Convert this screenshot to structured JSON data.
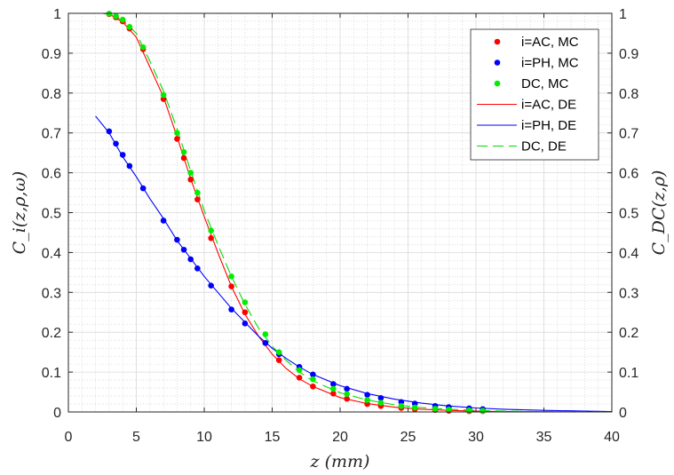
{
  "chart_data": {
    "type": "scatter",
    "xlabel": "z (mm)",
    "ylabel": "C_i(z,ρ,ω)",
    "ylabel_right": "C_DC(z,ρ)",
    "xlim": [
      0,
      40
    ],
    "ylim": [
      0,
      1
    ],
    "xticks": [
      "0",
      "5",
      "10",
      "15",
      "20",
      "25",
      "30",
      "35",
      "40"
    ],
    "yticks": [
      "0",
      "0.1",
      "0.2",
      "0.3",
      "0.4",
      "0.5",
      "0.6",
      "0.7",
      "0.8",
      "0.9",
      "1"
    ],
    "grid": true,
    "minor_grid": true,
    "legend_position": "top-right",
    "series": [
      {
        "name": "i=AC, MC",
        "kind": "markers",
        "color": "#ff0000",
        "x": [
          3,
          3.5,
          4,
          4.5,
          5.5,
          7,
          8,
          8.5,
          9,
          9.5,
          10.5,
          12,
          13,
          14.5,
          15.5,
          17,
          18,
          19.5,
          20.5,
          22,
          23,
          24.5,
          25.5,
          27,
          28,
          29.5,
          30.5
        ],
        "y": [
          0.998,
          0.99,
          0.98,
          0.962,
          0.91,
          0.785,
          0.685,
          0.637,
          0.583,
          0.533,
          0.436,
          0.315,
          0.25,
          0.173,
          0.13,
          0.086,
          0.064,
          0.046,
          0.033,
          0.02,
          0.015,
          0.01,
          0.007,
          0.005,
          0.003,
          0.002,
          0.002
        ]
      },
      {
        "name": "i=PH, MC",
        "kind": "markers",
        "color": "#0000ff",
        "x": [
          3,
          3.5,
          4,
          4.5,
          5.5,
          7,
          8,
          8.5,
          9,
          9.5,
          10.5,
          12,
          13,
          14.5,
          15.5,
          17,
          18,
          19.5,
          20.5,
          22,
          23,
          24.5,
          25.5,
          27,
          28,
          29.5,
          30.5
        ],
        "y": [
          0.704,
          0.673,
          0.645,
          0.617,
          0.561,
          0.48,
          0.432,
          0.407,
          0.383,
          0.36,
          0.317,
          0.257,
          0.222,
          0.173,
          0.145,
          0.113,
          0.094,
          0.07,
          0.058,
          0.043,
          0.035,
          0.025,
          0.021,
          0.015,
          0.012,
          0.009,
          0.007
        ]
      },
      {
        "name": "DC, MC",
        "kind": "markers",
        "color": "#00ee00",
        "x": [
          3,
          3.5,
          4,
          4.5,
          5.5,
          7,
          8,
          8.5,
          9,
          9.5,
          10.5,
          12,
          13,
          14.5,
          15.5,
          17,
          18,
          19.5,
          20.5,
          22,
          23,
          24.5,
          25.5,
          27,
          28,
          29.5,
          30.5
        ],
        "y": [
          0.999,
          0.993,
          0.984,
          0.966,
          0.915,
          0.795,
          0.7,
          0.652,
          0.6,
          0.55,
          0.455,
          0.34,
          0.275,
          0.195,
          0.15,
          0.105,
          0.082,
          0.058,
          0.045,
          0.03,
          0.023,
          0.015,
          0.011,
          0.008,
          0.006,
          0.004,
          0.003
        ]
      },
      {
        "name": "i=AC, DE",
        "kind": "line",
        "color": "#ff0000",
        "dash": "",
        "x": [
          2.5,
          3,
          4,
          5,
          6,
          7,
          8,
          9,
          10,
          11,
          12,
          13,
          14,
          15,
          16,
          17,
          18,
          20,
          22,
          24,
          26,
          28,
          30,
          32,
          35,
          40
        ],
        "y": [
          1.0,
          0.998,
          0.978,
          0.94,
          0.865,
          0.79,
          0.69,
          0.585,
          0.49,
          0.4,
          0.315,
          0.245,
          0.19,
          0.145,
          0.11,
          0.083,
          0.064,
          0.036,
          0.021,
          0.012,
          0.007,
          0.004,
          0.002,
          0.001,
          0.0005,
          0.0
        ]
      },
      {
        "name": "i=PH, DE",
        "kind": "line",
        "color": "#0000ff",
        "dash": "",
        "x": [
          2,
          3,
          4,
          5,
          6,
          7,
          8,
          9,
          10,
          11,
          12,
          13,
          14,
          15,
          16,
          17,
          18,
          20,
          22,
          24,
          26,
          28,
          30,
          32,
          35,
          40
        ],
        "y": [
          0.742,
          0.7,
          0.64,
          0.59,
          0.535,
          0.485,
          0.43,
          0.385,
          0.34,
          0.3,
          0.26,
          0.225,
          0.19,
          0.16,
          0.135,
          0.113,
          0.094,
          0.066,
          0.046,
          0.032,
          0.022,
          0.015,
          0.01,
          0.007,
          0.004,
          0.001
        ]
      },
      {
        "name": "DC, DE",
        "kind": "line",
        "color": "#00dd00",
        "dash": "12,6",
        "x": [
          2.5,
          3,
          4,
          5,
          6,
          7,
          8,
          9,
          10,
          11,
          12,
          13,
          14,
          15,
          16,
          17,
          18,
          20,
          22,
          24,
          26,
          28,
          30,
          32,
          35,
          40
        ],
        "y": [
          1.0,
          0.999,
          0.982,
          0.95,
          0.88,
          0.805,
          0.71,
          0.605,
          0.505,
          0.42,
          0.34,
          0.27,
          0.21,
          0.165,
          0.13,
          0.1,
          0.078,
          0.048,
          0.03,
          0.018,
          0.011,
          0.007,
          0.004,
          0.002,
          0.001,
          0.0
        ]
      }
    ]
  }
}
